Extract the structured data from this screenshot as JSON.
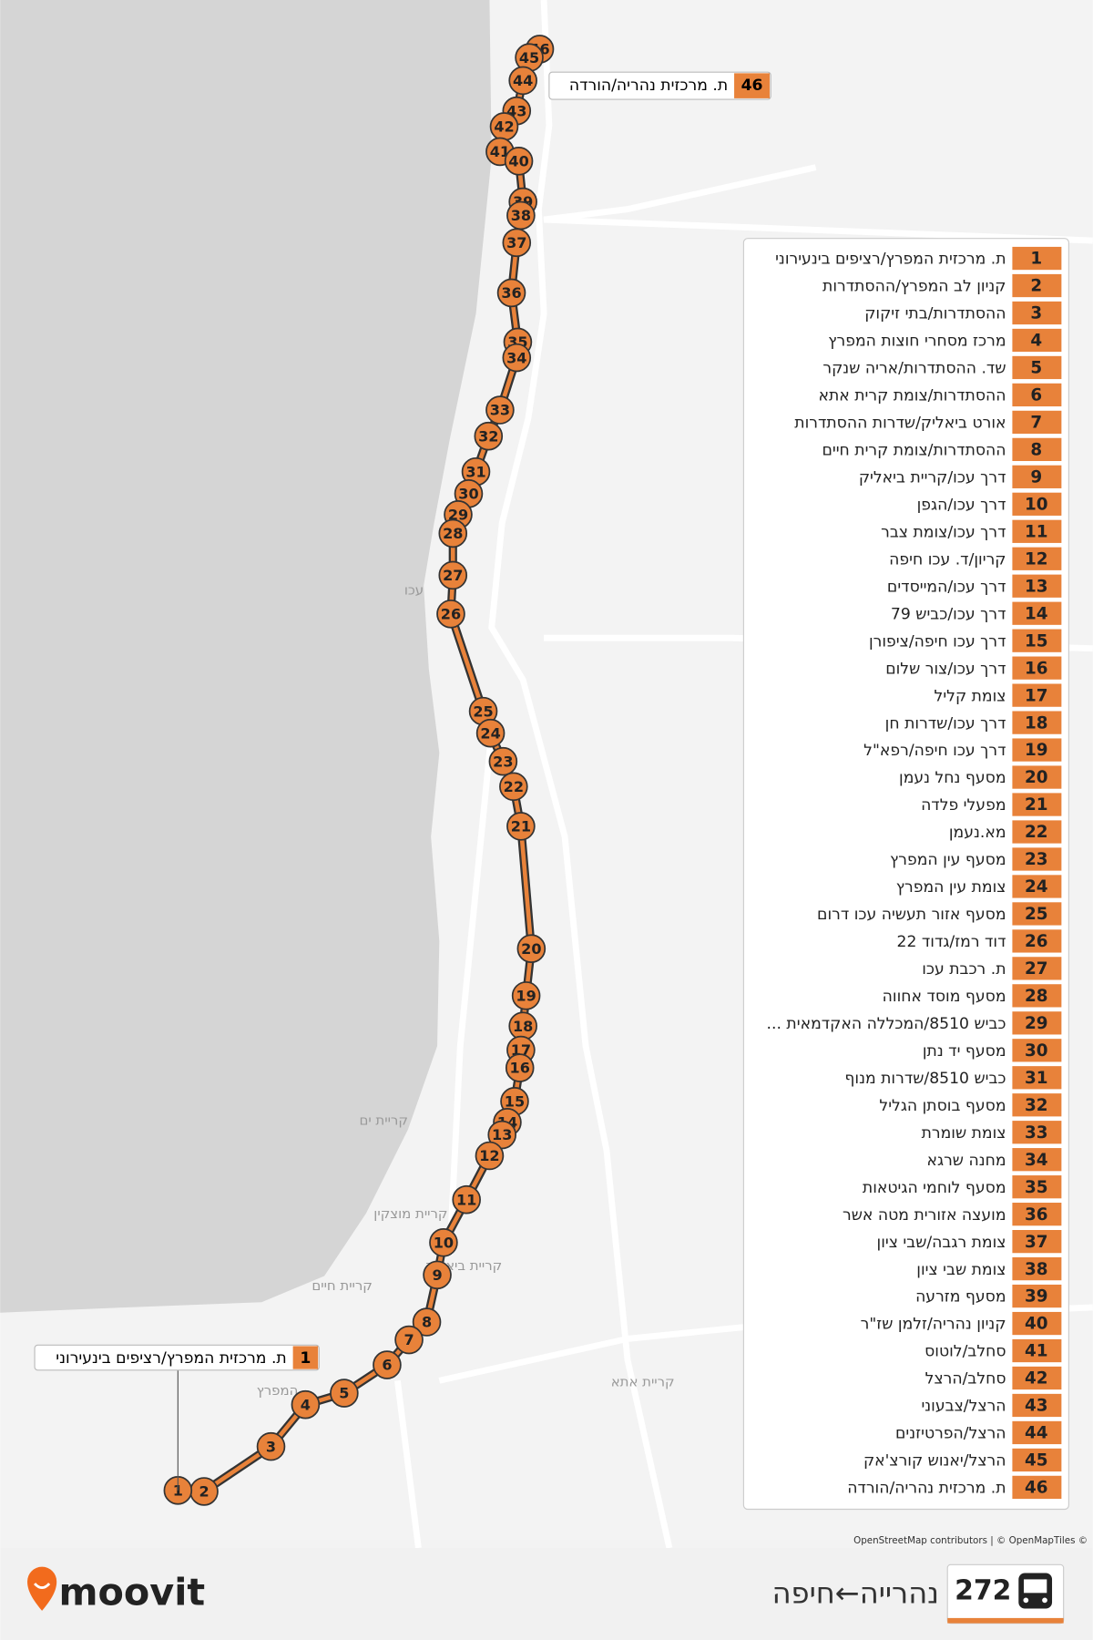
{
  "header": {
    "route_number": "272",
    "route_name": "נהרייה←חיפה",
    "brand": "moovit"
  },
  "map": {
    "places": [
      "עכו",
      "קריית ים",
      "קריית מוצקין",
      "קריית ביאליק",
      "קריית חיים",
      "קריית אתא",
      "המפרץ"
    ],
    "attribution": "OpenStreetMap contributors | © OpenMapTiles ©"
  },
  "stops": [
    {
      "number": "1",
      "name": "ת. מרכזית המפרץ/רציפים בינעירוני"
    },
    {
      "number": "2",
      "name": "קניון לב המפרץ/ההסתדרות"
    },
    {
      "number": "3",
      "name": "ההסתדרות/בתי זיקוק"
    },
    {
      "number": "4",
      "name": "מרכז מסחרי חוצות המפרץ"
    },
    {
      "number": "5",
      "name": "שד. ההסתדרות/אריה שנקר"
    },
    {
      "number": "6",
      "name": "ההסתדרות/צומת קרית אתא"
    },
    {
      "number": "7",
      "name": "אורט ביאליק/שדרות ההסתדרות"
    },
    {
      "number": "8",
      "name": "ההסתדרות/צומת קרית חיים"
    },
    {
      "number": "9",
      "name": "דרך עכו/קריית ביאליק"
    },
    {
      "number": "10",
      "name": "דרך עכו/הגפן"
    },
    {
      "number": "11",
      "name": "דרך עכו/צומת צבר"
    },
    {
      "number": "12",
      "name": "קריון/ד. עכו חיפה"
    },
    {
      "number": "13",
      "name": "דרך עכו/המייסדים"
    },
    {
      "number": "14",
      "name": "דרך עכו/כביש 79"
    },
    {
      "number": "15",
      "name": "דרך עכו חיפה/ציפורן"
    },
    {
      "number": "16",
      "name": "דרך עכו/צור שלום"
    },
    {
      "number": "17",
      "name": "צומת קליל"
    },
    {
      "number": "18",
      "name": "דרך עכו/שדרות חן"
    },
    {
      "number": "19",
      "name": "דרך עכו חיפה/רפא\"ל"
    },
    {
      "number": "20",
      "name": "מסעף נחל נעמן"
    },
    {
      "number": "21",
      "name": "מפעלי פלדה"
    },
    {
      "number": "22",
      "name": "מא.נעמן"
    },
    {
      "number": "23",
      "name": "מסעף עין המפרץ"
    },
    {
      "number": "24",
      "name": "צומת עין המפרץ"
    },
    {
      "number": "25",
      "name": "מסעף אזור תעשיה עכו דרום"
    },
    {
      "number": "26",
      "name": "דוד רמז/גדוד 22"
    },
    {
      "number": "27",
      "name": "ת. רכבת עכו"
    },
    {
      "number": "28",
      "name": "מסעף מוסד אחווה"
    },
    {
      "number": "29",
      "name": "כביש 8510/המכללה האקדמאית ..."
    },
    {
      "number": "30",
      "name": "מסעף יד נתן"
    },
    {
      "number": "31",
      "name": "כביש 8510/שדרות מנוף"
    },
    {
      "number": "32",
      "name": "מסעף בוסתן הגליל"
    },
    {
      "number": "33",
      "name": "צומת שומרת"
    },
    {
      "number": "34",
      "name": "מחנה שרגא"
    },
    {
      "number": "35",
      "name": "מסעף לוחמי הגיטאות"
    },
    {
      "number": "36",
      "name": "מועצה אזורית מטה אשר"
    },
    {
      "number": "37",
      "name": "צומת רגבה/שבי ציון"
    },
    {
      "number": "38",
      "name": "צומת שבי ציון"
    },
    {
      "number": "39",
      "name": "מסעף מזרעה"
    },
    {
      "number": "40",
      "name": "קניון נהריה/זלמן שז\"ר"
    },
    {
      "number": "41",
      "name": "סחלב/לוטוס"
    },
    {
      "number": "42",
      "name": "סחלב/הרצל"
    },
    {
      "number": "43",
      "name": "הרצל/צבעוני"
    },
    {
      "number": "44",
      "name": "הרצל/הפרטיזנים"
    },
    {
      "number": "45",
      "name": "הרצל/יאנוש קורצ'אק"
    },
    {
      "number": "46",
      "name": "ת. מרכזית נהריה/הורדה"
    }
  ]
}
